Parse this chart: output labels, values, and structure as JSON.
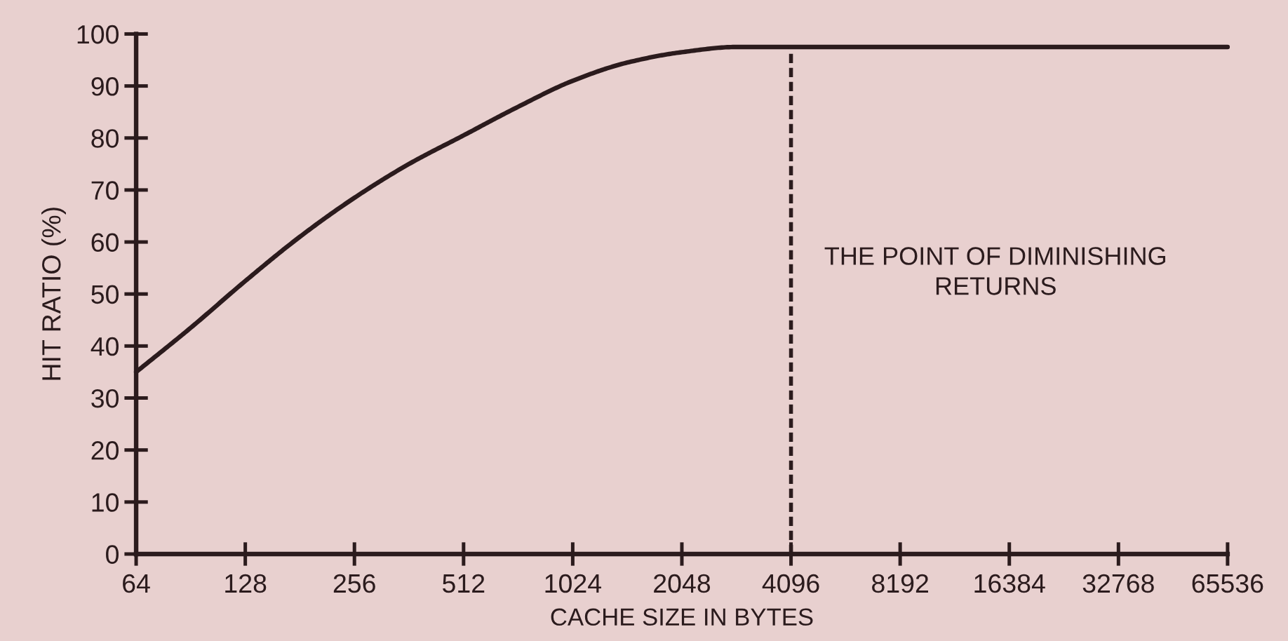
{
  "chart_data": {
    "type": "line",
    "xlabel": "CACHE SIZE IN BYTES",
    "ylabel": "HIT RATIO (%)",
    "log": "x",
    "x": [
      64,
      90.5,
      128,
      181,
      256,
      362,
      512,
      724,
      1024,
      1448,
      2048,
      2896,
      4096,
      65536
    ],
    "series": [
      {
        "color": "#2b1b1d",
        "values": [
          35,
          43.5,
          52.5,
          61,
          68.5,
          75,
          80.5,
          86,
          91,
          94.5,
          96.5,
          97.5,
          97.5,
          97.5
        ]
      }
    ],
    "xlim": [
      64,
      65536
    ],
    "xticks": [
      64,
      128,
      256,
      512,
      1024,
      2048,
      4096,
      8192,
      16384,
      32768,
      65536
    ],
    "ylim": [
      0,
      100
    ],
    "yticks": [
      0,
      10,
      20,
      30,
      40,
      50,
      60,
      70,
      80,
      90,
      100
    ],
    "ref_lines": [
      {
        "axis": "x",
        "value": 4096,
        "label": "THE POINT OF DIMINISHING\nRETURNS",
        "color": "#2b1b1d",
        "line_style": "dashed"
      }
    ],
    "marker": "none",
    "line_style": "solid"
  }
}
